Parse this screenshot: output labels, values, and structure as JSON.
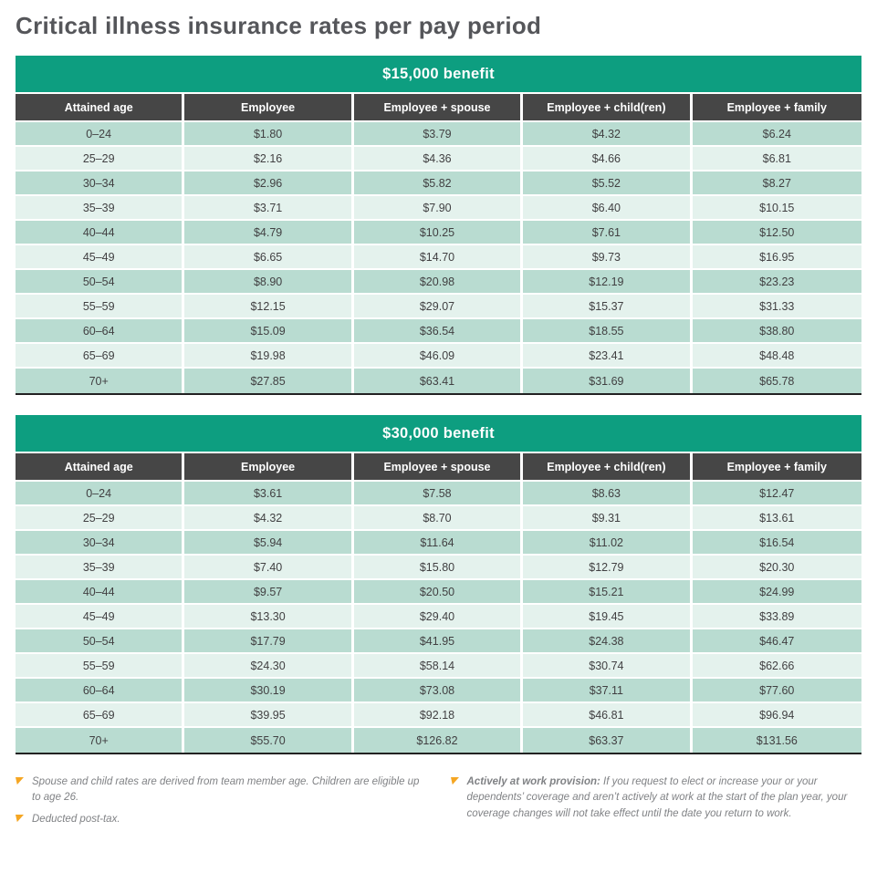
{
  "page_title": "Critical illness insurance rates per pay period",
  "columns": [
    "Attained age",
    "Employee",
    "Employee + spouse",
    "Employee + child(ren)",
    "Employee + family"
  ],
  "tables": [
    {
      "title": "$15,000 benefit",
      "rows": [
        [
          "0–24",
          "$1.80",
          "$3.79",
          "$4.32",
          "$6.24"
        ],
        [
          "25–29",
          "$2.16",
          "$4.36",
          "$4.66",
          "$6.81"
        ],
        [
          "30–34",
          "$2.96",
          "$5.82",
          "$5.52",
          "$8.27"
        ],
        [
          "35–39",
          "$3.71",
          "$7.90",
          "$6.40",
          "$10.15"
        ],
        [
          "40–44",
          "$4.79",
          "$10.25",
          "$7.61",
          "$12.50"
        ],
        [
          "45–49",
          "$6.65",
          "$14.70",
          "$9.73",
          "$16.95"
        ],
        [
          "50–54",
          "$8.90",
          "$20.98",
          "$12.19",
          "$23.23"
        ],
        [
          "55–59",
          "$12.15",
          "$29.07",
          "$15.37",
          "$31.33"
        ],
        [
          "60–64",
          "$15.09",
          "$36.54",
          "$18.55",
          "$38.80"
        ],
        [
          "65–69",
          "$19.98",
          "$46.09",
          "$23.41",
          "$48.48"
        ],
        [
          "70+",
          "$27.85",
          "$63.41",
          "$31.69",
          "$65.78"
        ]
      ]
    },
    {
      "title": "$30,000 benefit",
      "rows": [
        [
          "0–24",
          "$3.61",
          "$7.58",
          "$8.63",
          "$12.47"
        ],
        [
          "25–29",
          "$4.32",
          "$8.70",
          "$9.31",
          "$13.61"
        ],
        [
          "30–34",
          "$5.94",
          "$11.64",
          "$11.02",
          "$16.54"
        ],
        [
          "35–39",
          "$7.40",
          "$15.80",
          "$12.79",
          "$20.30"
        ],
        [
          "40–44",
          "$9.57",
          "$20.50",
          "$15.21",
          "$24.99"
        ],
        [
          "45–49",
          "$13.30",
          "$29.40",
          "$19.45",
          "$33.89"
        ],
        [
          "50–54",
          "$17.79",
          "$41.95",
          "$24.38",
          "$46.47"
        ],
        [
          "55–59",
          "$24.30",
          "$58.14",
          "$30.74",
          "$62.66"
        ],
        [
          "60–64",
          "$30.19",
          "$73.08",
          "$37.11",
          "$77.60"
        ],
        [
          "65–69",
          "$39.95",
          "$92.18",
          "$46.81",
          "$96.94"
        ],
        [
          "70+",
          "$55.70",
          "$126.82",
          "$63.37",
          "$131.56"
        ]
      ]
    }
  ],
  "footnotes": {
    "left": [
      "Spouse and child rates are derived from team member age. Children are eligible up to age 26.",
      "Deducted post-tax."
    ],
    "right_bold": "Actively at work provision: ",
    "right_text": "If you request to elect or increase your or your dependents’ coverage and aren’t actively at work at the start of the plan year, your coverage changes will not take effect until the date you return to work."
  },
  "colors": {
    "accent_green": "#0d9e80",
    "header_dark": "#464646",
    "row_dark": "#b9dcd1",
    "row_light": "#e4f2ed",
    "marker_orange": "#f5a623",
    "title_gray": "#55565a",
    "footnote_gray": "#808285"
  }
}
